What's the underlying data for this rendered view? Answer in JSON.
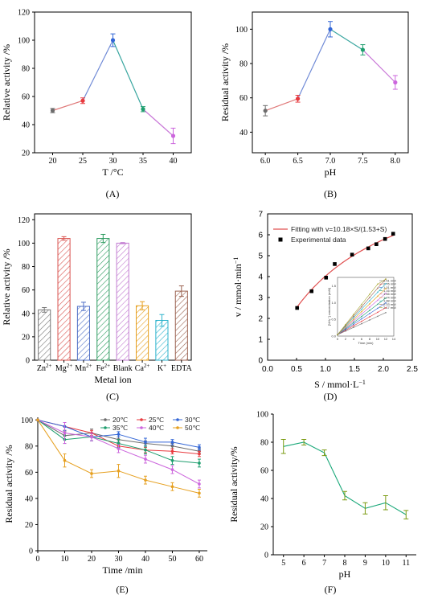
{
  "figure": {
    "captions": [
      "(A)",
      "(B)",
      "(C)",
      "(D)",
      "(E)",
      "(F)"
    ]
  },
  "chart_data": [
    {
      "id": "A",
      "type": "line",
      "caption": "(A)",
      "xlabel": "T /°C",
      "ylabel": "Relative activity /%",
      "xlim": [
        17,
        43
      ],
      "ylim": [
        20,
        120
      ],
      "xticks": [
        20,
        25,
        30,
        35,
        40
      ],
      "yticks": [
        20,
        40,
        60,
        80,
        100,
        120
      ],
      "x": [
        20,
        25,
        30,
        35,
        40
      ],
      "y": [
        50,
        57,
        100,
        51,
        32
      ],
      "err": [
        1.5,
        2,
        4.5,
        1.8,
        5.5
      ],
      "colors": [
        "#6d6d6d",
        "#e8393e",
        "#3366d6",
        "#1e9e6e",
        "#cc66dd"
      ],
      "segColors": [
        "#e07a7a",
        "#6f8ad6",
        "#39a6a0",
        "#c978d8"
      ]
    },
    {
      "id": "B",
      "type": "line",
      "caption": "(B)",
      "xlabel": "pH",
      "ylabel": "Residual activity /%",
      "xlim": [
        5.8,
        8.2
      ],
      "ylim": [
        28,
        110
      ],
      "xticks": [
        6.0,
        6.5,
        7.0,
        7.5,
        8.0
      ],
      "xtickLabels": [
        "6.0",
        "6.5",
        "7.0",
        "7.5",
        "8.0"
      ],
      "yticks": [
        40,
        60,
        80,
        100
      ],
      "x": [
        6.0,
        6.5,
        7.0,
        7.5,
        8.0
      ],
      "y": [
        52.5,
        59.5,
        100,
        88,
        69
      ],
      "err": [
        3,
        2,
        4.5,
        3,
        4
      ],
      "colors": [
        "#6d6d6d",
        "#e8393e",
        "#3366d6",
        "#1e9e6e",
        "#cc66dd"
      ],
      "segColors": [
        "#e07a7a",
        "#6f8ad6",
        "#39a6a0",
        "#c978d8"
      ]
    },
    {
      "id": "C",
      "type": "bar",
      "caption": "(C)",
      "xlabel": "Metal ion",
      "ylabel": "Relative activity /%",
      "ylim": [
        0,
        125
      ],
      "yticks": [
        0,
        20,
        40,
        60,
        80,
        100,
        120
      ],
      "categories": [
        "Zn",
        "Mg",
        "Mn",
        "Fe",
        "Blank",
        "Ca",
        "K",
        "EDTA"
      ],
      "superscripts": [
        "2+",
        "2+",
        "2+",
        "2+",
        "",
        "2+",
        "+",
        ""
      ],
      "values": [
        43,
        104,
        46,
        104,
        100,
        46.5,
        34,
        59
      ],
      "err": [
        2,
        1.5,
        3.5,
        3.5,
        0.5,
        3.5,
        5,
        4.5
      ],
      "colors": [
        "#777777",
        "#d9534f",
        "#4f6fc6",
        "#2b9a5e",
        "#c27bd1",
        "#e6a020",
        "#2db3cc",
        "#9b6250"
      ]
    },
    {
      "id": "D",
      "type": "scatter",
      "caption": "(D)",
      "xlabel": "S / mmol·L",
      "xlabelSup": "−1",
      "ylabel": "v / mmol·min",
      "ylabelSup": "−1",
      "xlim": [
        0,
        2.5
      ],
      "ylim": [
        0,
        7
      ],
      "xticks": [
        0.0,
        0.5,
        1.0,
        1.5,
        2.0,
        2.5
      ],
      "xtickLabels": [
        "0.0",
        "0.5",
        "1.0",
        "1.5",
        "2.0",
        "2.5"
      ],
      "yticks": [
        0,
        1,
        2,
        3,
        4,
        5,
        6,
        7
      ],
      "x": [
        0.51,
        0.76,
        1.01,
        1.16,
        1.46,
        1.74,
        1.88,
        2.03,
        2.17
      ],
      "y": [
        2.5,
        3.3,
        3.95,
        4.6,
        5.05,
        5.35,
        5.55,
        5.8,
        6.05
      ],
      "fit": {
        "vmax": 10.18,
        "km": 1.53
      },
      "legend": [
        "Fitting with v=10.18×S/(1.53+S)",
        "Experimental data"
      ],
      "inset": {
        "ylabel": "[NH₄⁺] concentration (mM)",
        "xlabel": "Time (min)",
        "xticks": [
          0,
          2,
          4,
          6,
          8,
          10,
          12,
          14
        ],
        "yticks": [
          0.0,
          0.5,
          1.0,
          1.5
        ],
        "series": [
          "0.51 mM",
          "0.76 mM",
          "1.01 mM",
          "1.16 mM",
          "1.46 mM",
          "1.74 mM",
          "1.88 mM",
          "2.03 mM",
          "2.17 mM"
        ],
        "colors": [
          "#777777",
          "#e8393e",
          "#3366d6",
          "#1e9e6e",
          "#cc66dd",
          "#e6a020",
          "#2db3cc",
          "#9b6250",
          "#a7a730"
        ]
      }
    },
    {
      "id": "E",
      "type": "line",
      "caption": "(E)",
      "xlabel": "Time /min",
      "ylabel": "Residual activity /%",
      "xlim": [
        0,
        63
      ],
      "ylim": [
        0,
        102
      ],
      "xticks": [
        0,
        10,
        20,
        30,
        40,
        50,
        60
      ],
      "yticks": [
        0,
        20,
        40,
        60,
        80,
        100
      ],
      "x": [
        0,
        10,
        20,
        30,
        40,
        50,
        60
      ],
      "series": [
        {
          "name": "20℃",
          "color": "#6d6d6d",
          "values": [
            100,
            88,
            90,
            85,
            82,
            80,
            76
          ],
          "err": [
            0,
            3,
            3,
            2,
            2,
            2,
            2
          ]
        },
        {
          "name": "25℃",
          "color": "#e8393e",
          "values": [
            100,
            95,
            90,
            80,
            77,
            76,
            74
          ],
          "err": [
            0,
            3,
            2,
            2,
            2,
            2,
            2
          ]
        },
        {
          "name": "30℃",
          "color": "#3366d6",
          "values": [
            100,
            95,
            87,
            89,
            83,
            83,
            79
          ],
          "err": [
            0,
            3,
            3,
            2,
            3,
            2,
            2
          ]
        },
        {
          "name": "35℃",
          "color": "#1e9e6e",
          "values": [
            100,
            85,
            87,
            82,
            77,
            69,
            67
          ],
          "err": [
            0,
            3,
            3,
            3,
            3,
            3,
            3
          ]
        },
        {
          "name": "40℃",
          "color": "#cc66dd",
          "values": [
            100,
            90,
            87,
            78,
            70,
            62,
            51
          ],
          "err": [
            0,
            8,
            3,
            3,
            3,
            3,
            3
          ]
        },
        {
          "name": "50℃",
          "color": "#e6a020",
          "values": [
            100,
            69,
            59,
            61,
            54,
            49,
            44
          ],
          "err": [
            0,
            5,
            3,
            5,
            3,
            3,
            3
          ]
        }
      ]
    },
    {
      "id": "F",
      "type": "line",
      "caption": "(F)",
      "xlabel": "pH",
      "ylabel": "Residual activity/%",
      "xlim": [
        4.5,
        11.5
      ],
      "ylim": [
        0,
        100
      ],
      "xticks": [
        5,
        6,
        7,
        8,
        9,
        10,
        11
      ],
      "yticks": [
        0,
        20,
        40,
        60,
        80,
        100
      ],
      "x": [
        5,
        6,
        7,
        8,
        9,
        10,
        11
      ],
      "y": [
        77,
        80,
        72.5,
        42,
        33,
        37,
        28.5
      ],
      "err": [
        5,
        2,
        2,
        3,
        4,
        5,
        3
      ],
      "color": "#1aa879",
      "errColor": "#7a9a10"
    }
  ]
}
